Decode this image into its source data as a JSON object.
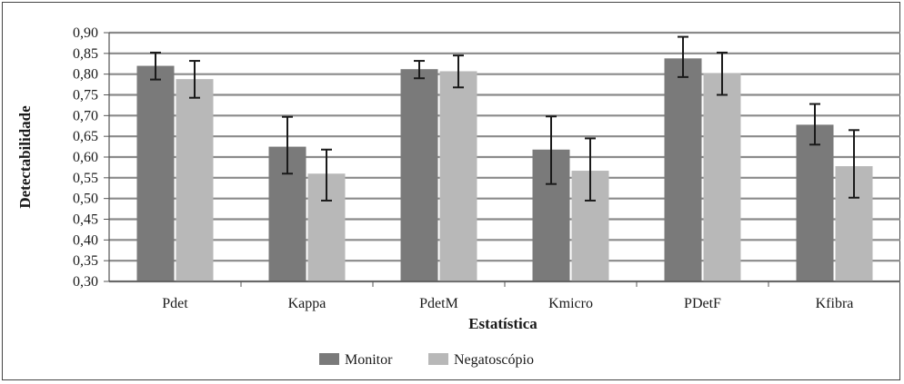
{
  "chart_data": {
    "type": "bar",
    "categories": [
      "Pdet",
      "Kappa",
      "PdetM",
      "Kmicro",
      "PDetF",
      "Kfibra"
    ],
    "series": [
      {
        "name": "Monitor",
        "color": "#7a7a7a",
        "values": [
          0.82,
          0.625,
          0.812,
          0.618,
          0.838,
          0.678
        ],
        "error_low": [
          0.787,
          0.56,
          0.79,
          0.535,
          0.793,
          0.63
        ],
        "error_high": [
          0.852,
          0.697,
          0.832,
          0.698,
          0.89,
          0.728
        ]
      },
      {
        "name": "Negatoscópio",
        "color": "#b8b8b8",
        "values": [
          0.788,
          0.56,
          0.807,
          0.567,
          0.802,
          0.578
        ],
        "error_low": [
          0.743,
          0.495,
          0.768,
          0.495,
          0.75,
          0.502
        ],
        "error_high": [
          0.832,
          0.618,
          0.845,
          0.645,
          0.852,
          0.665
        ]
      }
    ],
    "xlabel": "Estatística",
    "ylabel": "Detectabilidade",
    "ylim": [
      0.3,
      0.9
    ],
    "yticks": [
      "0,30",
      "0,35",
      "0,40",
      "0,45",
      "0,50",
      "0,55",
      "0,60",
      "0,65",
      "0,70",
      "0,75",
      "0,80",
      "0,85",
      "0,90"
    ],
    "grid": true,
    "legend": "bottom"
  }
}
